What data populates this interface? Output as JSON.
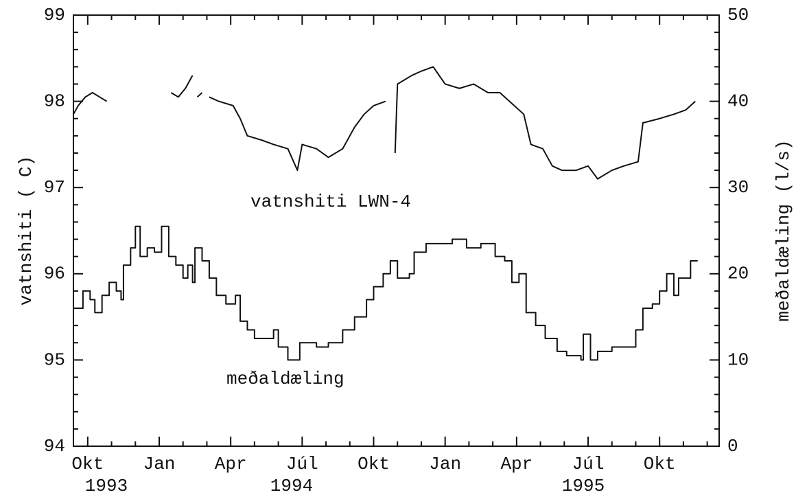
{
  "chart_data": {
    "type": "line",
    "ylabel": "vatnshiti ( C)",
    "y2label": "meðaldæling (l/s)",
    "annotations": [
      "vatnshiti LWN-4",
      "meðaldæling"
    ],
    "year_labels": [
      "1993",
      "1994",
      "1995"
    ],
    "xlim": [
      8.4,
      35.5
    ],
    "xticks": [
      {
        "value": 9,
        "label": "Okt"
      },
      {
        "value": 12,
        "label": "Jan"
      },
      {
        "value": 15,
        "label": "Apr"
      },
      {
        "value": 18,
        "label": "Júl"
      },
      {
        "value": 21,
        "label": "Okt"
      },
      {
        "value": 24,
        "label": "Jan"
      },
      {
        "value": 27,
        "label": "Apr"
      },
      {
        "value": 30,
        "label": "Júl"
      },
      {
        "value": 33,
        "label": "Okt"
      }
    ],
    "xminorticks": [
      10,
      11,
      13,
      14,
      16,
      17,
      19,
      20,
      22,
      23,
      25,
      26,
      28,
      29,
      31,
      32,
      34,
      35
    ],
    "ylim": [
      94,
      99
    ],
    "yticks": [
      94,
      95,
      96,
      97,
      98,
      99
    ],
    "yminorticks": [
      94.2,
      94.4,
      94.6,
      94.8,
      95.2,
      95.4,
      95.6,
      95.8,
      96.2,
      96.4,
      96.6,
      96.8,
      97.2,
      97.4,
      97.6,
      97.8,
      98.2,
      98.4,
      98.6,
      98.8
    ],
    "y2lim": [
      0,
      50
    ],
    "y2ticks": [
      0,
      10,
      20,
      30,
      40,
      50
    ],
    "series": [
      {
        "name": "vatnshiti LWN-4",
        "color": "#111111",
        "x": [
          8.4,
          8.6,
          8.9,
          9.2,
          9.5,
          9.8,
          11,
          12.5,
          12.8,
          13.1,
          13.4,
          13.5,
          13.6,
          13.8,
          13.95,
          14.1,
          14.5,
          15.1,
          15.4,
          15.7,
          16.3,
          16.8,
          17.4,
          17.8,
          18.0,
          18.6,
          19.1,
          19.7,
          20.2,
          20.6,
          21.0,
          21.5,
          21.7,
          21.9,
          22.0,
          22.6,
          23.0,
          23.5,
          24.0,
          24.6,
          25.2,
          25.8,
          26.3,
          26.9,
          27.3,
          27.6,
          28.1,
          28.5,
          28.9,
          29.5,
          30.0,
          30.4,
          31.0,
          31.5,
          32.1,
          32.3,
          33.0,
          33.6,
          34.1,
          34.5
        ],
        "values": [
          97.85,
          97.95,
          98.05,
          98.1,
          98.05,
          98.0,
          null,
          98.1,
          98.05,
          98.15,
          98.3,
          null,
          98.05,
          98.1,
          null,
          98.05,
          98.0,
          97.95,
          97.8,
          97.6,
          97.55,
          97.5,
          97.45,
          97.2,
          97.5,
          97.45,
          97.35,
          97.45,
          97.7,
          97.85,
          97.95,
          98.0,
          null,
          97.4,
          98.2,
          98.3,
          98.35,
          98.4,
          98.2,
          98.15,
          98.2,
          98.1,
          98.1,
          97.95,
          97.85,
          97.5,
          97.45,
          97.25,
          97.2,
          97.2,
          97.25,
          97.1,
          97.2,
          97.25,
          97.3,
          97.75,
          97.8,
          97.85,
          97.9,
          98.0
        ]
      },
      {
        "name": "meðaldæling",
        "color": "#111111",
        "axis": "y2",
        "step": "post",
        "x": [
          8.4,
          8.8,
          9.1,
          9.3,
          9.6,
          9.9,
          10.2,
          10.4,
          10.5,
          10.8,
          11.0,
          11.2,
          11.5,
          11.8,
          12.1,
          12.4,
          12.7,
          13.0,
          13.2,
          13.4,
          13.5,
          13.8,
          14.1,
          14.4,
          14.8,
          15.2,
          15.4,
          15.7,
          16.0,
          16.4,
          16.8,
          17.0,
          17.4,
          17.9,
          18.6,
          19.1,
          19.7,
          20.2,
          20.7,
          21.0,
          21.4,
          21.7,
          22.0,
          22.5,
          22.7,
          23.2,
          23.8,
          24.3,
          24.9,
          25.5,
          26.1,
          26.5,
          26.8,
          27.1,
          27.4,
          27.8,
          28.2,
          28.7,
          29.1,
          29.7,
          29.8,
          30.1,
          30.4,
          31.0,
          31.5,
          32.0,
          32.3,
          32.7,
          33.0,
          33.3,
          33.6,
          33.8,
          34.3,
          34.6
        ],
        "values": [
          16,
          18,
          17,
          15.5,
          17.5,
          19,
          18,
          17,
          21,
          23,
          25.5,
          22,
          23,
          22.5,
          25.5,
          22,
          21,
          19.5,
          21,
          19,
          23,
          21.5,
          19.5,
          17.5,
          16.5,
          17.5,
          14.5,
          13.5,
          12.5,
          12.5,
          13.5,
          11.5,
          10,
          12,
          11.5,
          12,
          13.5,
          15,
          17,
          18.5,
          20,
          21.5,
          19.5,
          20,
          22.5,
          23.5,
          23.5,
          24,
          23,
          23.5,
          22,
          21.5,
          19,
          20,
          15.5,
          14,
          12.5,
          11,
          10.5,
          10,
          13,
          10,
          11,
          11.5,
          11.5,
          13.5,
          16,
          16.5,
          18,
          20,
          17.5,
          19.5,
          21.5,
          21.5
        ]
      }
    ]
  }
}
